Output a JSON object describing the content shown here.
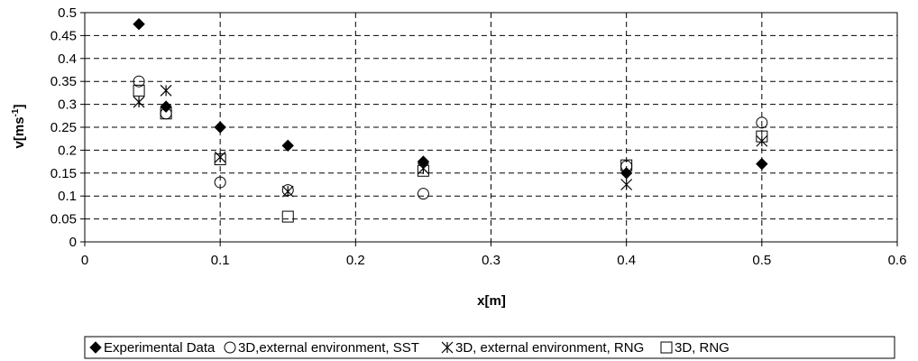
{
  "chart_data": {
    "type": "scatter",
    "title": "",
    "xlabel": "x[m]",
    "ylabel_main": "v[ms",
    "ylabel_sup": "-1",
    "ylabel_close": "]",
    "xlim": [
      0,
      0.6
    ],
    "ylim": [
      0,
      0.5
    ],
    "xticks": [
      "0",
      "0.1",
      "0.2",
      "0.3",
      "0.4",
      "0.5",
      "0.6"
    ],
    "yticks": [
      "0",
      "0.05",
      "0.1",
      "0.15",
      "0.2",
      "0.25",
      "0.3",
      "0.35",
      "0.4",
      "0.45",
      "0.5"
    ],
    "grid": true,
    "legend_position": "bottom",
    "series": [
      {
        "name": "Experimental Data",
        "marker": "filled-diamond",
        "x": [
          0.04,
          0.06,
          0.1,
          0.15,
          0.25,
          0.4,
          0.5
        ],
        "y": [
          0.475,
          0.295,
          0.25,
          0.21,
          0.175,
          0.15,
          0.17
        ]
      },
      {
        "name": "3D,external environment, SST",
        "marker": "open-circle",
        "x": [
          0.04,
          0.06,
          0.1,
          0.15,
          0.25,
          0.4,
          0.5
        ],
        "y": [
          0.35,
          0.28,
          0.13,
          0.113,
          0.105,
          0.165,
          0.26
        ]
      },
      {
        "name": "3D, external environment, RNG",
        "marker": "asterisk",
        "x": [
          0.04,
          0.06,
          0.1,
          0.15,
          0.25,
          0.4,
          0.5
        ],
        "y": [
          0.305,
          0.33,
          0.185,
          0.11,
          0.16,
          0.125,
          0.22
        ]
      },
      {
        "name": "3D, RNG",
        "marker": "open-square",
        "x": [
          0.04,
          0.06,
          0.1,
          0.15,
          0.25,
          0.4,
          0.5
        ],
        "y": [
          0.33,
          0.28,
          0.18,
          0.055,
          0.155,
          0.167,
          0.23
        ]
      }
    ]
  }
}
